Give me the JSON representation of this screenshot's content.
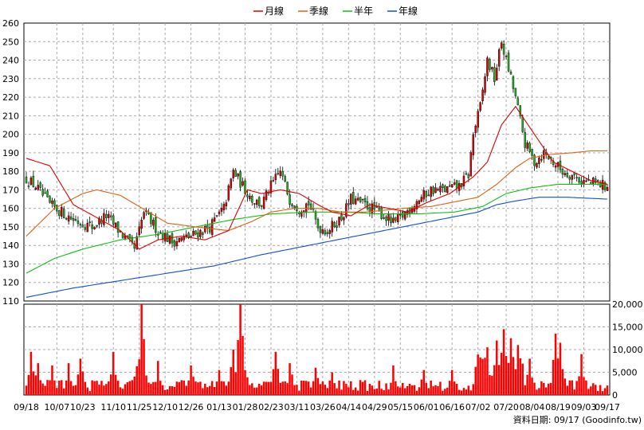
{
  "legend": [
    {
      "label": "月線",
      "color": "#e00000"
    },
    {
      "label": "季線",
      "color": "#e06010"
    },
    {
      "label": "半年",
      "color": "#10c010"
    },
    {
      "label": "年線",
      "color": "#1050d0"
    }
  ],
  "footer": {
    "text": "資料日期: 09/17 (Goodinfo.tw)"
  },
  "chart_data": {
    "type": "candlestick",
    "price_axis": {
      "min": 110,
      "max": 260,
      "ticks": [
        110,
        120,
        130,
        140,
        150,
        160,
        170,
        180,
        190,
        200,
        210,
        220,
        230,
        240,
        250,
        260
      ]
    },
    "volume_axis": {
      "min": 0,
      "max": 20000,
      "ticks": [
        "0",
        "5,000",
        "10,000",
        "15,000",
        "20,000"
      ]
    },
    "x_ticks": [
      {
        "label": "09/18",
        "i": 0
      },
      {
        "label": "10/07",
        "i": 13
      },
      {
        "label": "10/23",
        "i": 24
      },
      {
        "label": "11/10",
        "i": 37
      },
      {
        "label": "11/25",
        "i": 48
      },
      {
        "label": "12/10",
        "i": 59
      },
      {
        "label": "12/26",
        "i": 70
      },
      {
        "label": "01/13",
        "i": 82
      },
      {
        "label": "01/28",
        "i": 93
      },
      {
        "label": "02/23",
        "i": 104
      },
      {
        "label": "03/11",
        "i": 115
      },
      {
        "label": "03/26",
        "i": 126
      },
      {
        "label": "04/14",
        "i": 137
      },
      {
        "label": "04/29",
        "i": 148
      },
      {
        "label": "05/15",
        "i": 159
      },
      {
        "label": "06/01",
        "i": 170
      },
      {
        "label": "06/16",
        "i": 181
      },
      {
        "label": "07/02",
        "i": 192
      },
      {
        "label": "07/20",
        "i": 204
      },
      {
        "label": "08/04",
        "i": 215
      },
      {
        "label": "08/19",
        "i": 226
      },
      {
        "label": "09/03",
        "i": 237
      },
      {
        "label": "09/17",
        "i": 247
      }
    ],
    "n_days": 248,
    "close_anchors": [
      [
        0,
        176
      ],
      [
        4,
        172
      ],
      [
        10,
        162
      ],
      [
        15,
        158
      ],
      [
        20,
        154
      ],
      [
        28,
        150
      ],
      [
        34,
        156
      ],
      [
        40,
        147
      ],
      [
        46,
        138
      ],
      [
        50,
        158
      ],
      [
        56,
        148
      ],
      [
        62,
        142
      ],
      [
        70,
        145
      ],
      [
        78,
        150
      ],
      [
        84,
        160
      ],
      [
        88,
        180
      ],
      [
        92,
        172
      ],
      [
        96,
        165
      ],
      [
        100,
        162
      ],
      [
        104,
        172
      ],
      [
        108,
        180
      ],
      [
        112,
        165
      ],
      [
        116,
        160
      ],
      [
        120,
        163
      ],
      [
        124,
        150
      ],
      [
        128,
        148
      ],
      [
        134,
        155
      ],
      [
        138,
        165
      ],
      [
        144,
        162
      ],
      [
        150,
        158
      ],
      [
        156,
        152
      ],
      [
        160,
        156
      ],
      [
        166,
        164
      ],
      [
        172,
        170
      ],
      [
        178,
        170
      ],
      [
        184,
        172
      ],
      [
        188,
        178
      ],
      [
        190,
        200
      ],
      [
        193,
        215
      ],
      [
        196,
        240
      ],
      [
        199,
        230
      ],
      [
        202,
        250
      ],
      [
        205,
        235
      ],
      [
        208,
        220
      ],
      [
        212,
        195
      ],
      [
        216,
        185
      ],
      [
        220,
        190
      ],
      [
        224,
        185
      ],
      [
        228,
        180
      ],
      [
        232,
        178
      ],
      [
        236,
        175
      ],
      [
        240,
        174
      ],
      [
        244,
        173
      ],
      [
        247,
        172
      ]
    ],
    "vol_spikes": [
      [
        2,
        9500
      ],
      [
        5,
        7000
      ],
      [
        11,
        6500
      ],
      [
        18,
        7000
      ],
      [
        23,
        8000
      ],
      [
        37,
        9500
      ],
      [
        49,
        20000
      ],
      [
        50,
        9000
      ],
      [
        56,
        7500
      ],
      [
        70,
        6500
      ],
      [
        82,
        5500
      ],
      [
        88,
        10000
      ],
      [
        91,
        20000
      ],
      [
        106,
        9500
      ],
      [
        112,
        7000
      ],
      [
        123,
        6000
      ],
      [
        130,
        5000
      ],
      [
        156,
        6500
      ],
      [
        169,
        5500
      ],
      [
        181,
        5500
      ],
      [
        196,
        10500
      ],
      [
        200,
        12000
      ],
      [
        203,
        14500
      ],
      [
        206,
        12500
      ],
      [
        209,
        11000
      ],
      [
        214,
        8000
      ],
      [
        225,
        13500
      ],
      [
        227,
        11500
      ],
      [
        236,
        9000
      ]
    ],
    "ma_month": [
      [
        0,
        187
      ],
      [
        10,
        183
      ],
      [
        20,
        162
      ],
      [
        30,
        155
      ],
      [
        40,
        148
      ],
      [
        48,
        138
      ],
      [
        56,
        143
      ],
      [
        66,
        145
      ],
      [
        76,
        143
      ],
      [
        86,
        148
      ],
      [
        94,
        170
      ],
      [
        100,
        168
      ],
      [
        108,
        170
      ],
      [
        116,
        168
      ],
      [
        124,
        162
      ],
      [
        130,
        158
      ],
      [
        138,
        156
      ],
      [
        146,
        162
      ],
      [
        154,
        160
      ],
      [
        162,
        158
      ],
      [
        170,
        163
      ],
      [
        180,
        168
      ],
      [
        190,
        177
      ],
      [
        196,
        185
      ],
      [
        202,
        205
      ],
      [
        208,
        215
      ],
      [
        216,
        200
      ],
      [
        224,
        185
      ],
      [
        232,
        180
      ],
      [
        240,
        175
      ],
      [
        247,
        173
      ]
    ],
    "ma_quarter": [
      [
        0,
        145
      ],
      [
        12,
        160
      ],
      [
        24,
        168
      ],
      [
        30,
        170
      ],
      [
        40,
        167
      ],
      [
        52,
        158
      ],
      [
        60,
        152
      ],
      [
        72,
        150
      ],
      [
        86,
        148
      ],
      [
        96,
        153
      ],
      [
        104,
        158
      ],
      [
        114,
        160
      ],
      [
        124,
        160
      ],
      [
        134,
        158
      ],
      [
        144,
        158
      ],
      [
        160,
        160
      ],
      [
        172,
        161
      ],
      [
        184,
        164
      ],
      [
        192,
        166
      ],
      [
        200,
        173
      ],
      [
        208,
        182
      ],
      [
        214,
        187
      ],
      [
        222,
        189
      ],
      [
        232,
        190
      ],
      [
        240,
        191
      ],
      [
        247,
        191
      ]
    ],
    "ma_half": [
      [
        0,
        125
      ],
      [
        12,
        133
      ],
      [
        24,
        138
      ],
      [
        40,
        143
      ],
      [
        56,
        146
      ],
      [
        72,
        150
      ],
      [
        88,
        154
      ],
      [
        104,
        157
      ],
      [
        120,
        158
      ],
      [
        136,
        158
      ],
      [
        150,
        157
      ],
      [
        166,
        157
      ],
      [
        182,
        158
      ],
      [
        194,
        161
      ],
      [
        204,
        168
      ],
      [
        214,
        171
      ],
      [
        226,
        173
      ],
      [
        240,
        173
      ],
      [
        247,
        173
      ]
    ],
    "ma_year": [
      [
        0,
        112
      ],
      [
        20,
        117
      ],
      [
        40,
        121
      ],
      [
        60,
        125
      ],
      [
        80,
        129
      ],
      [
        100,
        135
      ],
      [
        120,
        140
      ],
      [
        140,
        145
      ],
      [
        160,
        150
      ],
      [
        180,
        155
      ],
      [
        192,
        158
      ],
      [
        200,
        162
      ],
      [
        208,
        164
      ],
      [
        218,
        166
      ],
      [
        230,
        166
      ],
      [
        247,
        165
      ]
    ]
  }
}
